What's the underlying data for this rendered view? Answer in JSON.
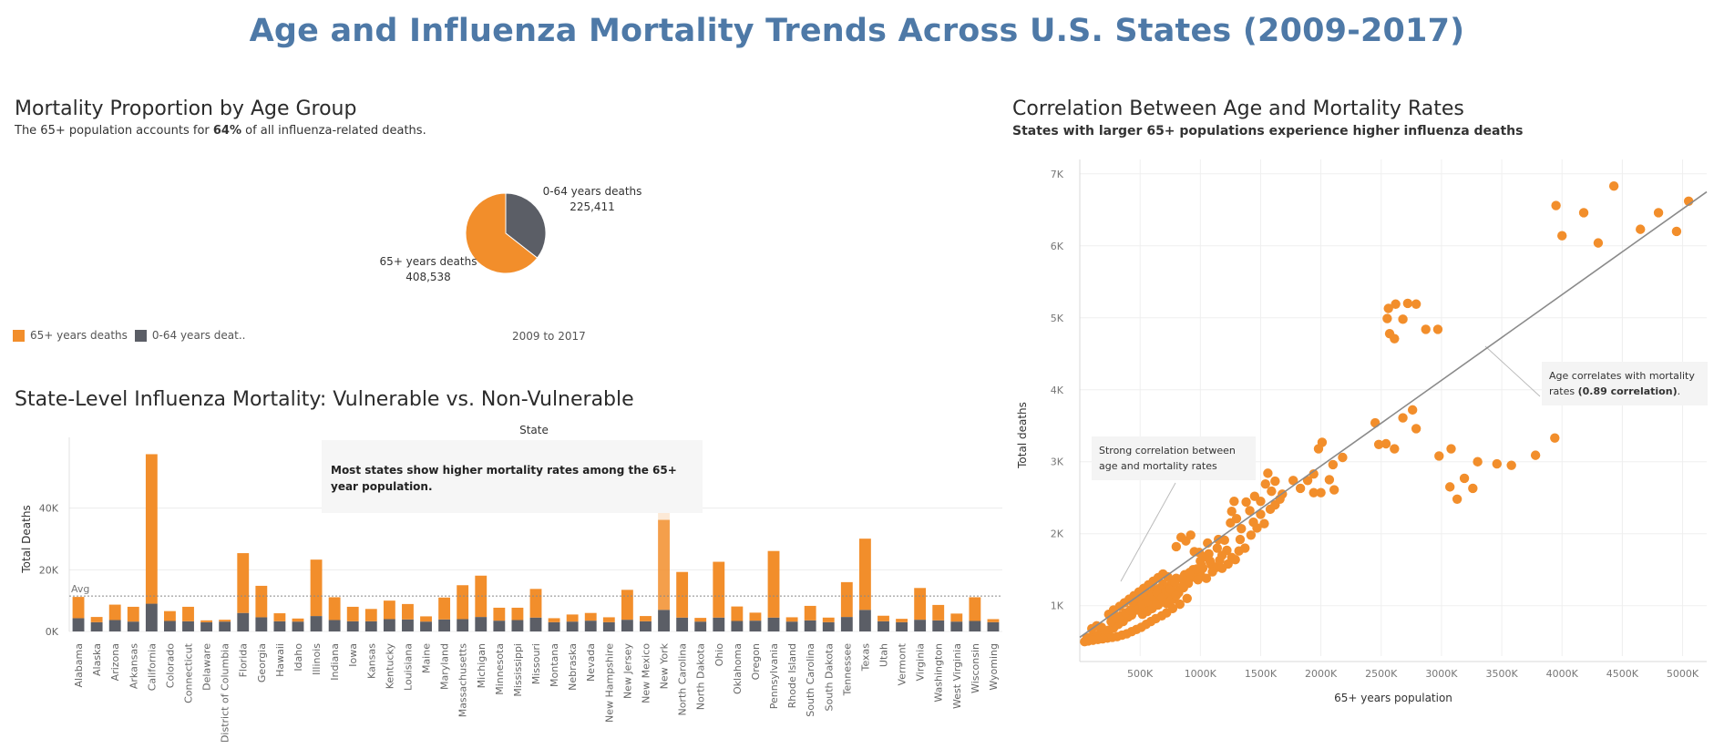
{
  "title": "Age and Influenza Mortality Trends Across U.S. States (2009-2017)",
  "colors": {
    "title": "#4e79a7",
    "orange": "#f28e2b",
    "gray": "#5b5e66",
    "line": "#8a8a8a"
  },
  "pie_panel": {
    "title": "Mortality Proportion by Age Group",
    "subtitle_pre": "The 65+ population accounts for ",
    "subtitle_bold": "64%",
    "subtitle_post": " of all influenza-related deaths.",
    "legend": [
      "65+ years deaths",
      "0-64 years deat.."
    ],
    "period": "2009 to 2017",
    "label_young_name": "0-64 years deaths",
    "label_young_value": "225,411",
    "label_old_name": "65+ years deaths",
    "label_old_value": "408,538"
  },
  "bar_panel": {
    "title": "State-Level Influenza Mortality: Vulnerable vs. Non-Vulnerable",
    "header": "State",
    "ylabel": "Total Deaths",
    "avg_label": "Avg",
    "note": "Most states show higher mortality rates among the 65+ year population."
  },
  "scatter_panel": {
    "title": "Correlation Between Age and Mortality Rates",
    "subtitle": "States with larger 65+ populations experience higher influenza deaths",
    "xlabel": "65+ years population",
    "ylabel": "Total deaths",
    "note1": "Strong correlation between age and mortality rates",
    "note2_pre": "Age correlates with mortality rates ",
    "note2_bold": "(0.89 correlation)",
    "note2_post": "."
  },
  "chart_data": [
    {
      "type": "pie",
      "title": "Mortality Proportion by Age Group",
      "slices": [
        {
          "name": "65+ years deaths",
          "value": 408538
        },
        {
          "name": "0-64 years deaths",
          "value": 225411
        }
      ]
    },
    {
      "type": "bar",
      "stacked": true,
      "title": "State-Level Influenza Mortality: Vulnerable vs. Non-Vulnerable",
      "ylabel": "Total Deaths",
      "ylim": [
        0,
        60000
      ],
      "yticks": [
        0,
        20000,
        40000
      ],
      "ytick_labels": [
        "0K",
        "20K",
        "40K"
      ],
      "avg": 11500,
      "categories": [
        "Alabama",
        "Alaska",
        "Arizona",
        "Arkansas",
        "California",
        "Colorado",
        "Connecticut",
        "Delaware",
        "District of Columbia",
        "Florida",
        "Georgia",
        "Hawaii",
        "Idaho",
        "Illinois",
        "Indiana",
        "Iowa",
        "Kansas",
        "Kentucky",
        "Louisiana",
        "Maine",
        "Maryland",
        "Massachusetts",
        "Michigan",
        "Minnesota",
        "Mississippi",
        "Missouri",
        "Montana",
        "Nebraska",
        "Nevada",
        "New Hampshire",
        "New Jersey",
        "New Mexico",
        "New York",
        "North Carolina",
        "North Dakota",
        "Ohio",
        "Oklahoma",
        "Oregon",
        "Pennsylvania",
        "Rhode Island",
        "South Carolina",
        "South Dakota",
        "Tennessee",
        "Texas",
        "Utah",
        "Vermont",
        "Virginia",
        "Washington",
        "West Virginia",
        "Wisconsin",
        "Wyoming"
      ],
      "series": [
        {
          "name": "0-64 years deaths",
          "values": [
            4300,
            3000,
            3700,
            3200,
            9000,
            3400,
            3300,
            3000,
            3200,
            6000,
            4600,
            3300,
            3200,
            5000,
            3700,
            3300,
            3300,
            4000,
            3900,
            3200,
            3900,
            4000,
            4700,
            3500,
            3700,
            4500,
            3000,
            3200,
            3500,
            3000,
            3800,
            3300,
            7000,
            4500,
            3200,
            4500,
            3400,
            3500,
            4500,
            3200,
            3600,
            3000,
            4700,
            7000,
            3300,
            3000,
            3800,
            3600,
            3200,
            3400,
            3000
          ]
        },
        {
          "name": "65+ years deaths",
          "values": [
            6900,
            1700,
            5000,
            4800,
            48500,
            3200,
            4700,
            600,
            600,
            19400,
            10200,
            2600,
            1000,
            18300,
            7400,
            4700,
            4000,
            6000,
            5000,
            1700,
            7100,
            11000,
            13400,
            4200,
            4000,
            9300,
            1300,
            2300,
            2500,
            1600,
            9700,
            1700,
            29200,
            14800,
            1200,
            18100,
            4700,
            2600,
            21600,
            1400,
            4700,
            1500,
            11300,
            23100,
            1800,
            1100,
            10300,
            5000,
            2600,
            7700,
            1000
          ]
        }
      ]
    },
    {
      "type": "scatter",
      "title": "Correlation Between Age and Mortality Rates",
      "xlabel": "65+ years population",
      "ylabel": "Total deaths",
      "xlim": [
        0,
        5200000
      ],
      "ylim": [
        300,
        7200
      ],
      "xticks": [
        500000,
        1000000,
        1500000,
        2000000,
        2500000,
        3000000,
        3500000,
        4000000,
        4500000,
        5000000
      ],
      "xtick_labels": [
        "500K",
        "1000K",
        "1500K",
        "2000K",
        "2500K",
        "3000K",
        "3500K",
        "4000K",
        "4500K",
        "5000K"
      ],
      "yticks": [
        1000,
        2000,
        3000,
        4000,
        5000,
        6000,
        7000
      ],
      "ytick_labels": [
        "1K",
        "2K",
        "3K",
        "4K",
        "5K",
        "6K",
        "7K"
      ],
      "trendline": [
        [
          0,
          560
        ],
        [
          5200000,
          6750
        ]
      ],
      "points": [
        [
          3950000,
          6560
        ],
        [
          4000000,
          6140
        ],
        [
          4180000,
          6460
        ],
        [
          4300000,
          6040
        ],
        [
          4430000,
          6830
        ],
        [
          4650000,
          6230
        ],
        [
          4800000,
          6460
        ],
        [
          4950000,
          6200
        ],
        [
          5050000,
          6620
        ],
        [
          2560000,
          5130
        ],
        [
          2620000,
          5190
        ],
        [
          2720000,
          5200
        ],
        [
          2790000,
          5190
        ],
        [
          2680000,
          4980
        ],
        [
          2550000,
          4990
        ],
        [
          2870000,
          4840
        ],
        [
          2970000,
          4840
        ],
        [
          2570000,
          4780
        ],
        [
          2610000,
          4710
        ],
        [
          2450000,
          3540
        ],
        [
          2680000,
          3610
        ],
        [
          2760000,
          3720
        ],
        [
          2790000,
          3460
        ],
        [
          2480000,
          3240
        ],
        [
          2540000,
          3250
        ],
        [
          2610000,
          3180
        ],
        [
          2980000,
          3080
        ],
        [
          3080000,
          3180
        ],
        [
          3300000,
          3000
        ],
        [
          3460000,
          2970
        ],
        [
          3580000,
          2950
        ],
        [
          3780000,
          3090
        ],
        [
          3940000,
          3330
        ],
        [
          3070000,
          2650
        ],
        [
          3130000,
          2480
        ],
        [
          3190000,
          2770
        ],
        [
          3260000,
          2630
        ],
        [
          1980000,
          3180
        ],
        [
          2010000,
          3270
        ],
        [
          2100000,
          2960
        ],
        [
          2180000,
          3060
        ],
        [
          2070000,
          2750
        ],
        [
          1940000,
          2830
        ],
        [
          1940000,
          2570
        ],
        [
          2110000,
          2610
        ],
        [
          2000000,
          2570
        ],
        [
          1830000,
          2630
        ],
        [
          1540000,
          2690
        ],
        [
          1560000,
          2840
        ],
        [
          1620000,
          2730
        ],
        [
          1680000,
          2550
        ],
        [
          1770000,
          2740
        ],
        [
          1890000,
          2740
        ],
        [
          1450000,
          2520
        ],
        [
          1500000,
          2450
        ],
        [
          1590000,
          2590
        ],
        [
          1260000,
          2310
        ],
        [
          1280000,
          2450
        ],
        [
          1380000,
          2440
        ],
        [
          1250000,
          2150
        ],
        [
          1300000,
          2210
        ],
        [
          1410000,
          2320
        ],
        [
          1440000,
          2160
        ],
        [
          1200000,
          1910
        ],
        [
          1340000,
          2070
        ],
        [
          1500000,
          2270
        ],
        [
          1030000,
          1680
        ],
        [
          1070000,
          1720
        ],
        [
          1140000,
          1800
        ],
        [
          1220000,
          1770
        ],
        [
          1000000,
          1620
        ],
        [
          1150000,
          1920
        ],
        [
          1180000,
          1700
        ],
        [
          1260000,
          1670
        ],
        [
          1320000,
          1760
        ],
        [
          1370000,
          1800
        ],
        [
          1130000,
          1530
        ],
        [
          1160000,
          1630
        ],
        [
          1020000,
          1520
        ],
        [
          1090000,
          1570
        ],
        [
          940000,
          1500
        ],
        [
          870000,
          1430
        ],
        [
          760000,
          1300
        ],
        [
          800000,
          1380
        ],
        [
          840000,
          1950
        ],
        [
          800000,
          1820
        ],
        [
          920000,
          1980
        ],
        [
          880000,
          1900
        ],
        [
          950000,
          1750
        ],
        [
          990000,
          1740
        ],
        [
          1060000,
          1870
        ],
        [
          750000,
          1280
        ],
        [
          700000,
          1250
        ],
        [
          660000,
          1150
        ],
        [
          620000,
          1220
        ],
        [
          580000,
          1100
        ],
        [
          540000,
          1030
        ],
        [
          500000,
          980
        ],
        [
          470000,
          940
        ],
        [
          430000,
          870
        ],
        [
          400000,
          840
        ],
        [
          360000,
          780
        ],
        [
          320000,
          740
        ],
        [
          280000,
          690
        ],
        [
          240000,
          660
        ],
        [
          200000,
          630
        ],
        [
          160000,
          600
        ],
        [
          120000,
          580
        ],
        [
          80000,
          560
        ],
        [
          60000,
          550
        ],
        [
          100000,
          680
        ],
        [
          140000,
          720
        ],
        [
          180000,
          700
        ],
        [
          210000,
          650
        ],
        [
          260000,
          780
        ],
        [
          300000,
          830
        ],
        [
          340000,
          860
        ],
        [
          380000,
          900
        ],
        [
          420000,
          940
        ],
        [
          460000,
          1000
        ],
        [
          490000,
          1080
        ],
        [
          530000,
          1120
        ],
        [
          560000,
          1170
        ],
        [
          610000,
          1080
        ],
        [
          650000,
          1010
        ],
        [
          690000,
          1300
        ],
        [
          730000,
          1400
        ],
        [
          780000,
          1090
        ],
        [
          820000,
          1180
        ],
        [
          860000,
          1250
        ],
        [
          900000,
          1310
        ],
        [
          960000,
          1390
        ],
        [
          1000000,
          1440
        ],
        [
          1050000,
          1380
        ],
        [
          890000,
          1100
        ],
        [
          830000,
          1020
        ],
        [
          770000,
          960
        ],
        [
          720000,
          900
        ],
        [
          680000,
          860
        ],
        [
          630000,
          820
        ],
        [
          590000,
          780
        ],
        [
          550000,
          740
        ],
        [
          510000,
          700
        ],
        [
          470000,
          670
        ],
        [
          430000,
          640
        ],
        [
          390000,
          610
        ],
        [
          350000,
          590
        ],
        [
          310000,
          570
        ],
        [
          270000,
          560
        ],
        [
          230000,
          550
        ],
        [
          190000,
          540
        ],
        [
          150000,
          530
        ],
        [
          110000,
          520
        ],
        [
          70000,
          510
        ],
        [
          40000,
          500
        ],
        [
          240000,
          880
        ],
        [
          280000,
          940
        ],
        [
          330000,
          990
        ],
        [
          370000,
          1040
        ],
        [
          410000,
          1090
        ],
        [
          450000,
          1140
        ],
        [
          490000,
          1190
        ],
        [
          530000,
          1240
        ],
        [
          570000,
          1290
        ],
        [
          610000,
          1340
        ],
        [
          650000,
          1390
        ],
        [
          690000,
          1440
        ],
        [
          520000,
          880
        ],
        [
          560000,
          920
        ],
        [
          600000,
          960
        ],
        [
          640000,
          1010
        ],
        [
          700000,
          1050
        ],
        [
          740000,
          1100
        ],
        [
          780000,
          1160
        ],
        [
          820000,
          1220
        ],
        [
          860000,
          1280
        ],
        [
          900000,
          1350
        ],
        [
          940000,
          1420
        ],
        [
          980000,
          1360
        ],
        [
          1100000,
          1470
        ],
        [
          1180000,
          1520
        ],
        [
          1230000,
          1580
        ],
        [
          1290000,
          1640
        ],
        [
          1330000,
          1920
        ],
        [
          1420000,
          1980
        ],
        [
          1470000,
          2080
        ],
        [
          1530000,
          2140
        ],
        [
          1580000,
          2340
        ],
        [
          1620000,
          2400
        ],
        [
          1660000,
          2480
        ],
        [
          620000,
          1180
        ],
        [
          660000,
          1240
        ],
        [
          710000,
          1180
        ],
        [
          750000,
          1230
        ],
        [
          790000,
          1320
        ],
        [
          850000,
          1380
        ],
        [
          910000,
          1460
        ],
        [
          970000,
          1510
        ],
        [
          1010000,
          1560
        ],
        [
          1080000,
          1620
        ],
        [
          440000,
          1050
        ],
        [
          480000,
          1100
        ],
        [
          520000,
          1020
        ],
        [
          560000,
          1060
        ],
        [
          600000,
          1140
        ],
        [
          640000,
          1180
        ],
        [
          680000,
          1110
        ],
        [
          720000,
          1030
        ],
        [
          760000,
          1080
        ],
        [
          800000,
          1140
        ]
      ]
    }
  ]
}
